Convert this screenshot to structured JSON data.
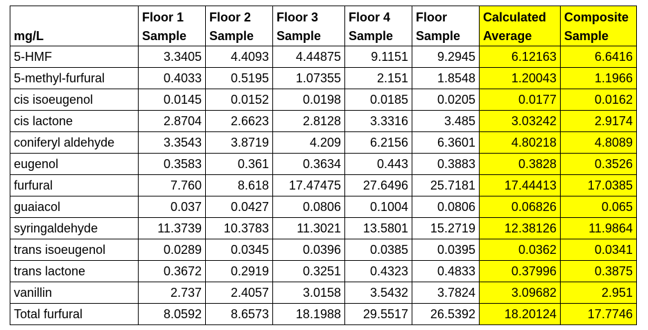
{
  "table": {
    "unit_label": "mg/L",
    "columns": [
      {
        "line1": "Floor 1",
        "line2": "Sample",
        "highlight": false
      },
      {
        "line1": "Floor 2",
        "line2": "Sample",
        "highlight": false
      },
      {
        "line1": "Floor 3",
        "line2": "Sample",
        "highlight": false
      },
      {
        "line1": "Floor 4",
        "line2": "Sample",
        "highlight": false
      },
      {
        "line1": "Floor",
        "line2": "Sample",
        "highlight": false
      },
      {
        "line1": "Calculated",
        "line2": "Average",
        "highlight": true
      },
      {
        "line1": "Composite",
        "line2": "Sample",
        "highlight": true
      }
    ],
    "rows": [
      {
        "name": "5-HMF",
        "values": [
          "3.3405",
          "4.4093",
          "4.44875",
          "9.1151",
          "9.2945",
          "6.12163",
          "6.6416"
        ]
      },
      {
        "name": "5-methyl-furfural",
        "values": [
          "0.4033",
          "0.5195",
          "1.07355",
          "2.151",
          "1.8548",
          "1.20043",
          "1.1966"
        ]
      },
      {
        "name": "cis isoeugenol",
        "values": [
          "0.0145",
          "0.0152",
          "0.0198",
          "0.0185",
          "0.0205",
          "0.0177",
          "0.0162"
        ]
      },
      {
        "name": "cis lactone",
        "values": [
          "2.8704",
          "2.6623",
          "2.8128",
          "3.3316",
          "3.485",
          "3.03242",
          "2.9174"
        ]
      },
      {
        "name": "coniferyl aldehyde",
        "values": [
          "3.3543",
          "3.8719",
          "4.209",
          "6.2156",
          "6.3601",
          "4.80218",
          "4.8089"
        ]
      },
      {
        "name": "eugenol",
        "values": [
          "0.3583",
          "0.361",
          "0.3634",
          "0.443",
          "0.3883",
          "0.3828",
          "0.3526"
        ]
      },
      {
        "name": "furfural",
        "values": [
          "7.760",
          "8.618",
          "17.47475",
          "27.6496",
          "25.7181",
          "17.44413",
          "17.0385"
        ]
      },
      {
        "name": "guaiacol",
        "values": [
          "0.037",
          "0.0427",
          "0.0806",
          "0.1004",
          "0.0806",
          "0.06826",
          "0.065"
        ]
      },
      {
        "name": "syringaldehyde",
        "values": [
          "11.3739",
          "10.3783",
          "11.3021",
          "13.5801",
          "15.2719",
          "12.38126",
          "11.9864"
        ]
      },
      {
        "name": "trans isoeugenol",
        "values": [
          "0.0289",
          "0.0345",
          "0.0396",
          "0.0385",
          "0.0395",
          "0.0362",
          "0.0341"
        ]
      },
      {
        "name": "trans lactone",
        "values": [
          "0.3672",
          "0.2919",
          "0.3251",
          "0.4323",
          "0.4833",
          "0.37996",
          "0.3875"
        ]
      },
      {
        "name": "vanillin",
        "values": [
          "2.737",
          "2.4057",
          "3.0158",
          "3.5432",
          "3.7824",
          "3.09682",
          "2.951"
        ]
      },
      {
        "name": "Total furfural",
        "values": [
          "8.0592",
          "8.6573",
          "18.1988",
          "29.5517",
          "26.5392",
          "18.20124",
          "17.7746"
        ]
      }
    ],
    "highlight_color": "#ffff00"
  }
}
